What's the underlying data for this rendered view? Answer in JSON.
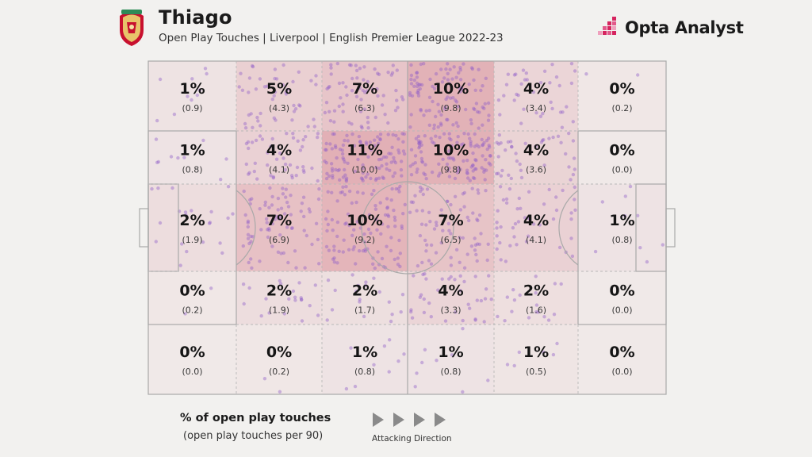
{
  "header": {
    "player_name": "Thiago",
    "subtitle": "Open Play Touches | Liverpool | English Premier League 2022-23",
    "brand_name": "Opta Analyst",
    "club_crest": "liverpool-crest-icon"
  },
  "colors": {
    "background": "#f2f1ef",
    "zone_heat": "#d98a95",
    "touch_dot": "#8f5cc9",
    "brand_accent": "#d6245f",
    "pitch_line": "#a9a9a9"
  },
  "chart_data": {
    "type": "heatmap",
    "title": "Thiago",
    "subtitle": "Open Play Touches | Liverpool | English Premier League 2022-23",
    "metric": "% of open play touches",
    "secondary_metric": "open play touches per 90",
    "attacking_direction": "left-to-right",
    "rows": 5,
    "cols": 6,
    "zones": [
      [
        {
          "pct": "1%",
          "p90": "(0.9)",
          "v": 0.9
        },
        {
          "pct": "5%",
          "p90": "(4.3)",
          "v": 4.3
        },
        {
          "pct": "7%",
          "p90": "(6.3)",
          "v": 6.3
        },
        {
          "pct": "10%",
          "p90": "(9.8)",
          "v": 9.8
        },
        {
          "pct": "4%",
          "p90": "(3.4)",
          "v": 3.4
        },
        {
          "pct": "0%",
          "p90": "(0.2)",
          "v": 0.2
        }
      ],
      [
        {
          "pct": "1%",
          "p90": "(0.8)",
          "v": 0.8
        },
        {
          "pct": "4%",
          "p90": "(4.1)",
          "v": 4.1
        },
        {
          "pct": "11%",
          "p90": "(10.0)",
          "v": 10.0
        },
        {
          "pct": "10%",
          "p90": "(9.8)",
          "v": 9.8
        },
        {
          "pct": "4%",
          "p90": "(3.6)",
          "v": 3.6
        },
        {
          "pct": "0%",
          "p90": "(0.0)",
          "v": 0.0
        }
      ],
      [
        {
          "pct": "2%",
          "p90": "(1.9)",
          "v": 1.9
        },
        {
          "pct": "7%",
          "p90": "(6.9)",
          "v": 6.9
        },
        {
          "pct": "10%",
          "p90": "(9.2)",
          "v": 9.2
        },
        {
          "pct": "7%",
          "p90": "(6.5)",
          "v": 6.5
        },
        {
          "pct": "4%",
          "p90": "(4.1)",
          "v": 4.1
        },
        {
          "pct": "1%",
          "p90": "(0.8)",
          "v": 0.8
        }
      ],
      [
        {
          "pct": "0%",
          "p90": "(0.2)",
          "v": 0.2
        },
        {
          "pct": "2%",
          "p90": "(1.9)",
          "v": 1.9
        },
        {
          "pct": "2%",
          "p90": "(1.7)",
          "v": 1.7
        },
        {
          "pct": "4%",
          "p90": "(3.3)",
          "v": 3.3
        },
        {
          "pct": "2%",
          "p90": "(1.6)",
          "v": 1.6
        },
        {
          "pct": "0%",
          "p90": "(0.0)",
          "v": 0.0
        }
      ],
      [
        {
          "pct": "0%",
          "p90": "(0.0)",
          "v": 0.0
        },
        {
          "pct": "0%",
          "p90": "(0.2)",
          "v": 0.2
        },
        {
          "pct": "1%",
          "p90": "(0.8)",
          "v": 0.8
        },
        {
          "pct": "1%",
          "p90": "(0.8)",
          "v": 0.8
        },
        {
          "pct": "1%",
          "p90": "(0.5)",
          "v": 0.5
        },
        {
          "pct": "0%",
          "p90": "(0.0)",
          "v": 0.0
        }
      ]
    ]
  },
  "legend": {
    "title": "% of open play touches",
    "subtitle": "(open play touches per 90)",
    "direction_label": "Attacking Direction",
    "arrow_icon": "play-arrow-icon"
  }
}
